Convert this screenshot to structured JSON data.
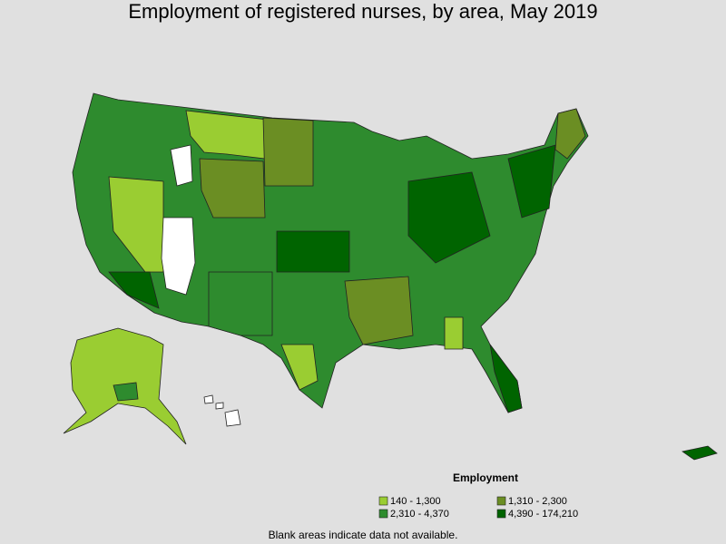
{
  "title": "Employment of registered nurses, by area, May 2019",
  "legend": {
    "title": "Employment",
    "items": [
      {
        "label": "140 - 1,300",
        "color": "#9acd32"
      },
      {
        "label": "1,310 - 2,300",
        "color": "#6b8e23"
      },
      {
        "label": "2,310 - 4,370",
        "color": "#2e8b2e"
      },
      {
        "label": "4,390 - 174,210",
        "color": "#006400"
      }
    ]
  },
  "note": "Blank areas indicate data not available."
}
